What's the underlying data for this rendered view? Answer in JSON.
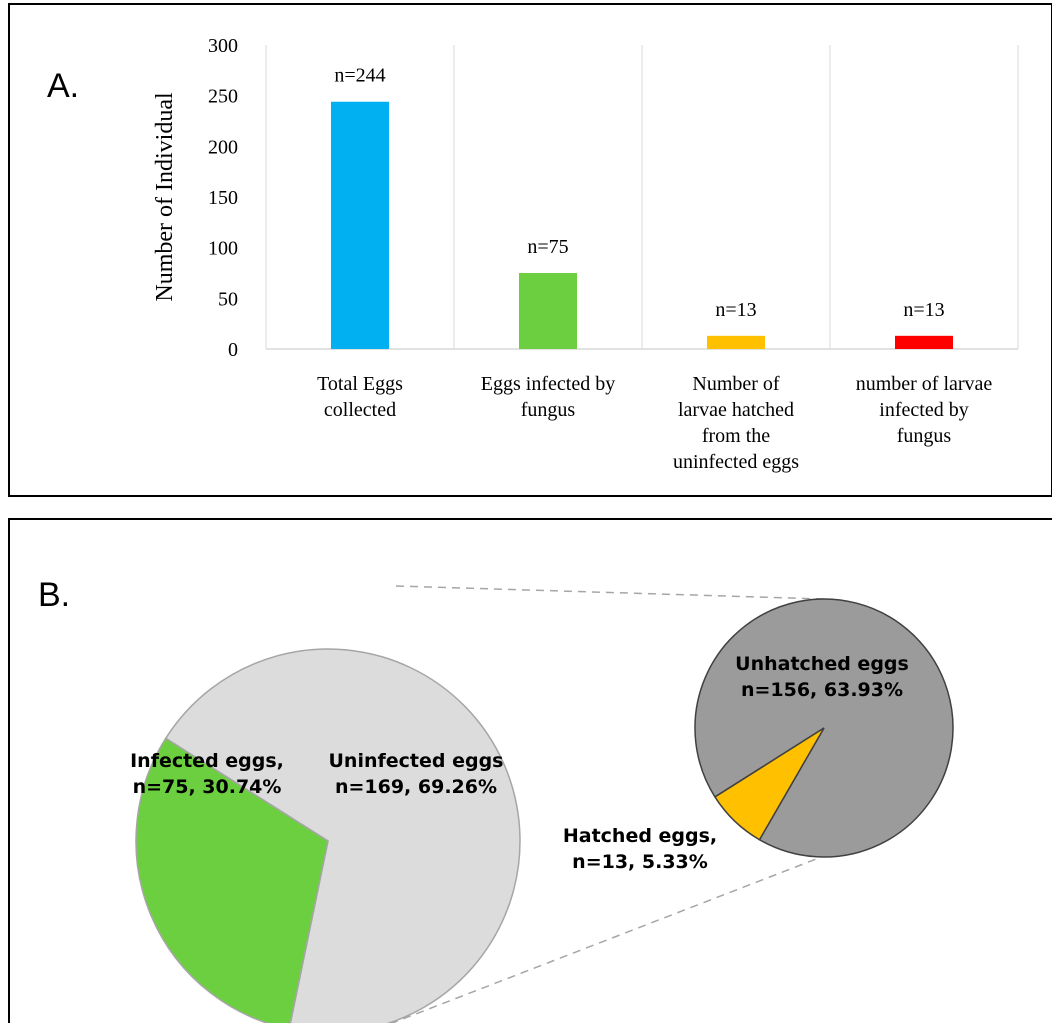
{
  "chart_data": [
    {
      "type": "bar",
      "panel_label": "A.",
      "ylabel": "Number of Individual",
      "ylim": [
        0,
        300
      ],
      "yticks": [
        0,
        50,
        100,
        150,
        200,
        250,
        300
      ],
      "grid": "vertical category separators",
      "categories": [
        [
          "Total Eggs",
          "collected"
        ],
        [
          "Eggs infected by",
          "fungus"
        ],
        [
          "Number of",
          "larvae hatched",
          "from the",
          "uninfected eggs"
        ],
        [
          "number of larvae",
          "infected by",
          "fungus"
        ]
      ],
      "values": [
        244,
        75,
        13,
        13
      ],
      "data_labels": [
        "n=244",
        "n=75",
        "n=13",
        "n=13"
      ],
      "colors": [
        "#00B0F0",
        "#6CCF3F",
        "#FFC000",
        "#FF0000"
      ]
    },
    {
      "type": "pie",
      "panel_label": "B.",
      "pies": [
        {
          "slices": [
            {
              "label": [
                "Uninfected eggs",
                "n=169, 69.26%"
              ],
              "value": 169,
              "percent": 69.26,
              "color": "#DCDCDC"
            },
            {
              "label": [
                "Infected eggs,",
                "n=75, 30.74%"
              ],
              "value": 75,
              "percent": 30.74,
              "color": "#6CCF3F"
            }
          ]
        },
        {
          "slices": [
            {
              "label": [
                "Unhatched eggs",
                "n=156, 63.93%"
              ],
              "value": 156,
              "percent": 63.93,
              "color": "#9B9B9B"
            },
            {
              "label": [
                "Hatched eggs,",
                "n=13, 5.33%"
              ],
              "value": 13,
              "percent": 5.33,
              "color": "#FFC000"
            }
          ]
        }
      ]
    }
  ]
}
